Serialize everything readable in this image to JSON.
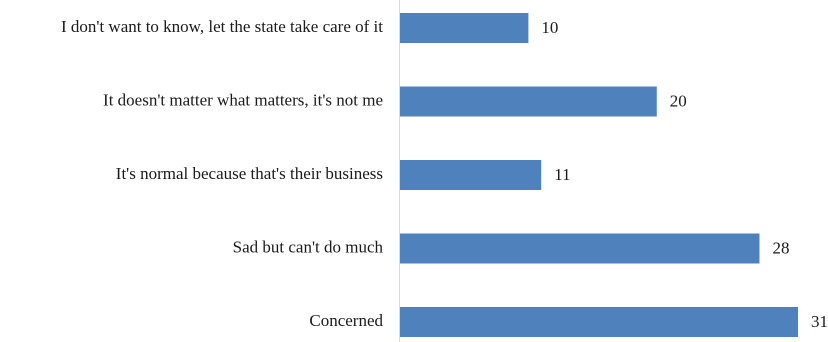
{
  "chart_data": {
    "type": "bar",
    "orientation": "horizontal",
    "categories": [
      "I don't want to know, let the state take care of it",
      "It doesn't matter what matters, it's not me",
      "It's normal because that's their business",
      "Sad but can't do much",
      "Concerned"
    ],
    "values": [
      10,
      20,
      11,
      28,
      31
    ],
    "data_labels": [
      "10",
      "20",
      "11",
      "28",
      "31"
    ],
    "title": "",
    "xlabel": "",
    "ylabel": "",
    "xlim": [
      0,
      31
    ],
    "grid": false,
    "legend": "none",
    "bar_color": "#4f81bd"
  }
}
